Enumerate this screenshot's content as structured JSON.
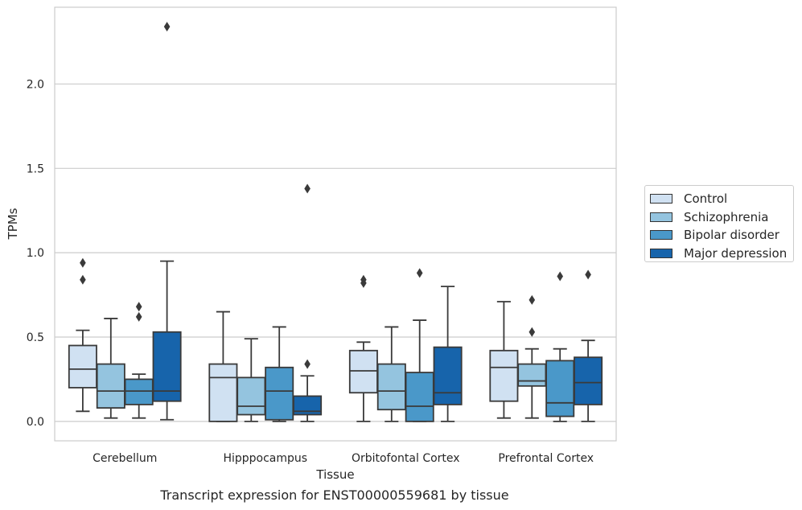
{
  "chart_data": {
    "type": "box",
    "title": "",
    "xlabel": "Tissue",
    "ylabel": "TPMs",
    "ylim": [
      -0.115,
      2.455
    ],
    "yticks": [
      0.0,
      0.5,
      1.0,
      1.5,
      2.0
    ],
    "ytick_labels": [
      "0.0",
      "0.5",
      "1.0",
      "1.5",
      "2.0"
    ],
    "grid": "horizontal",
    "legend_position": "right",
    "categories": [
      "Cerebellum",
      "Hipppocampus",
      "Orbitofontal Cortex",
      "Prefrontal Cortex"
    ],
    "series": [
      {
        "name": "Control",
        "color": "#d0e1f2",
        "boxes": [
          {
            "whislo": 0.06,
            "q1": 0.2,
            "med": 0.31,
            "q3": 0.45,
            "whishi": 0.54,
            "fliers": [
              0.84,
              0.94
            ]
          },
          {
            "whislo": 0.0,
            "q1": 0.0,
            "med": 0.26,
            "q3": 0.34,
            "whishi": 0.65,
            "fliers": []
          },
          {
            "whislo": 0.0,
            "q1": 0.17,
            "med": 0.3,
            "q3": 0.42,
            "whishi": 0.47,
            "fliers": [
              0.82,
              0.84
            ]
          },
          {
            "whislo": 0.02,
            "q1": 0.12,
            "med": 0.32,
            "q3": 0.42,
            "whishi": 0.71,
            "fliers": []
          }
        ]
      },
      {
        "name": "Schizophrenia",
        "color": "#94c4df",
        "boxes": [
          {
            "whislo": 0.02,
            "q1": 0.08,
            "med": 0.18,
            "q3": 0.34,
            "whishi": 0.61,
            "fliers": []
          },
          {
            "whislo": 0.0,
            "q1": 0.04,
            "med": 0.09,
            "q3": 0.26,
            "whishi": 0.49,
            "fliers": []
          },
          {
            "whislo": 0.0,
            "q1": 0.07,
            "med": 0.18,
            "q3": 0.34,
            "whishi": 0.56,
            "fliers": []
          },
          {
            "whislo": 0.02,
            "q1": 0.21,
            "med": 0.24,
            "q3": 0.34,
            "whishi": 0.43,
            "fliers": [
              0.53,
              0.72
            ]
          }
        ]
      },
      {
        "name": "Bipolar disorder",
        "color": "#4a98c9",
        "boxes": [
          {
            "whislo": 0.02,
            "q1": 0.1,
            "med": 0.18,
            "q3": 0.25,
            "whishi": 0.28,
            "fliers": [
              0.62,
              0.68
            ]
          },
          {
            "whislo": 0.0,
            "q1": 0.01,
            "med": 0.18,
            "q3": 0.32,
            "whishi": 0.56,
            "fliers": []
          },
          {
            "whislo": 0.0,
            "q1": 0.0,
            "med": 0.09,
            "q3": 0.29,
            "whishi": 0.6,
            "fliers": [
              0.88
            ]
          },
          {
            "whislo": 0.0,
            "q1": 0.03,
            "med": 0.11,
            "q3": 0.36,
            "whishi": 0.43,
            "fliers": [
              0.86
            ]
          }
        ]
      },
      {
        "name": "Major depression",
        "color": "#1764ab",
        "boxes": [
          {
            "whislo": 0.01,
            "q1": 0.12,
            "med": 0.18,
            "q3": 0.53,
            "whishi": 0.95,
            "fliers": [
              2.34
            ]
          },
          {
            "whislo": 0.0,
            "q1": 0.04,
            "med": 0.06,
            "q3": 0.15,
            "whishi": 0.27,
            "fliers": [
              0.34,
              1.38
            ]
          },
          {
            "whislo": 0.0,
            "q1": 0.1,
            "med": 0.17,
            "q3": 0.44,
            "whishi": 0.8,
            "fliers": []
          },
          {
            "whislo": 0.0,
            "q1": 0.1,
            "med": 0.23,
            "q3": 0.38,
            "whishi": 0.48,
            "fliers": [
              0.87
            ]
          }
        ]
      }
    ],
    "caption": "Transcript expression for ENST00000559681 by tissue"
  }
}
